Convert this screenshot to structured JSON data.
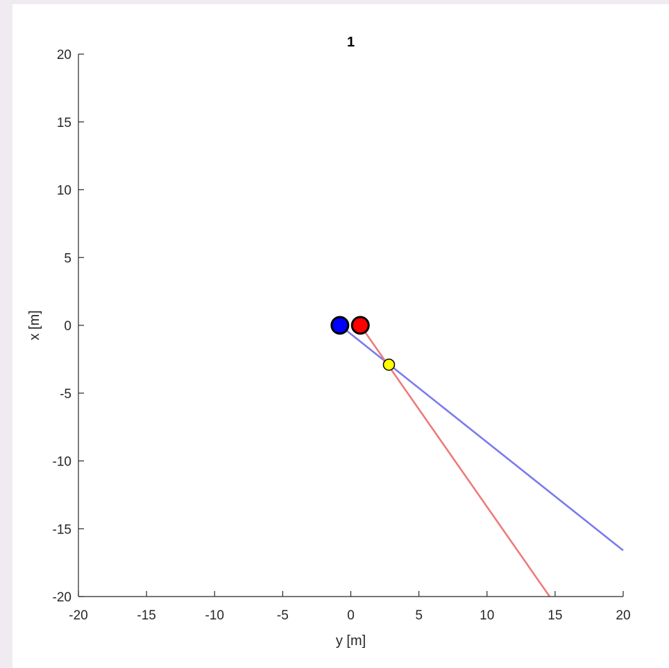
{
  "chart_data": {
    "type": "line",
    "title": "1",
    "xlabel": "y [m]",
    "ylabel": "x [m]",
    "xlim": [
      -20,
      20
    ],
    "ylim": [
      -20,
      20
    ],
    "xticks": [
      -20,
      -15,
      -10,
      -5,
      0,
      5,
      10,
      15,
      20
    ],
    "yticks": [
      -20,
      -15,
      -10,
      -5,
      0,
      5,
      10,
      15,
      20
    ],
    "grid": false,
    "series": [
      {
        "color": "#7a7aee",
        "points": [
          [
            -0.8,
            0
          ],
          [
            20,
            -16.6
          ]
        ]
      },
      {
        "color": "#ee7a7a",
        "points": [
          [
            0.7,
            0
          ],
          [
            14.6,
            -20
          ]
        ]
      }
    ],
    "markers": [
      {
        "x": -0.8,
        "y": 0,
        "color": "#0000ff",
        "edge": "#000000",
        "size": "large"
      },
      {
        "x": 0.7,
        "y": 0,
        "color": "#ff0000",
        "edge": "#000000",
        "size": "large"
      },
      {
        "x": 2.8,
        "y": -2.9,
        "color": "#ffff00",
        "edge": "#000000",
        "size": "small"
      }
    ]
  }
}
